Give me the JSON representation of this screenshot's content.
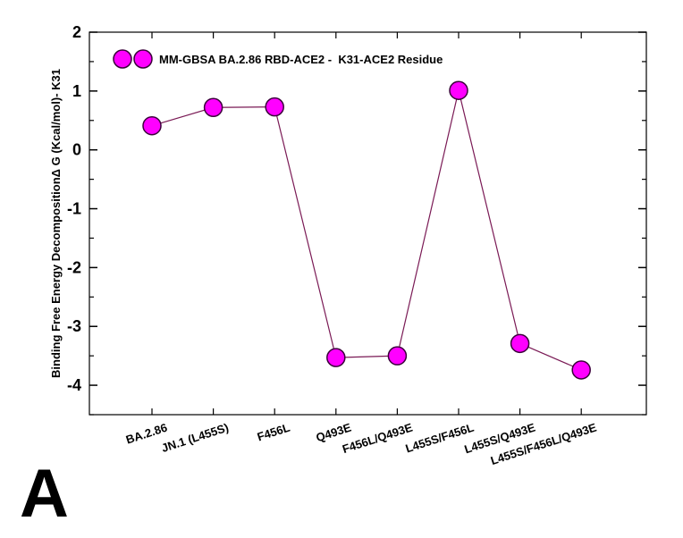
{
  "panel_label": "A",
  "chart_data": {
    "type": "line",
    "categories": [
      "BA.2.86",
      "JN.1 (L455S)",
      "F456L",
      "Q493E",
      "F456L/Q493E",
      "L455S/F456L",
      "L455S/Q493E",
      "L455S/F456L/Q493E"
    ],
    "series": [
      {
        "name": "MM-GBSA BA.2.86 RBD-ACE2 -  K31-ACE2 Residue",
        "values": [
          0.41,
          0.72,
          0.73,
          -3.53,
          -3.5,
          1.01,
          -3.29,
          -3.74
        ]
      }
    ],
    "xlabel": "",
    "ylabel": "Binding Free Energy DecompositionΔ G (Kcal/mol)- K31",
    "ylim": [
      -4.5,
      2
    ],
    "yticks": [
      2,
      1,
      0,
      -1,
      -2,
      -3,
      -4
    ],
    "grid": false,
    "legend_position": "top-left",
    "colors": {
      "marker_fill": "#ff00ff",
      "marker_stroke": "#3a003a",
      "line": "#7a1a55",
      "axis": "#000000"
    }
  }
}
